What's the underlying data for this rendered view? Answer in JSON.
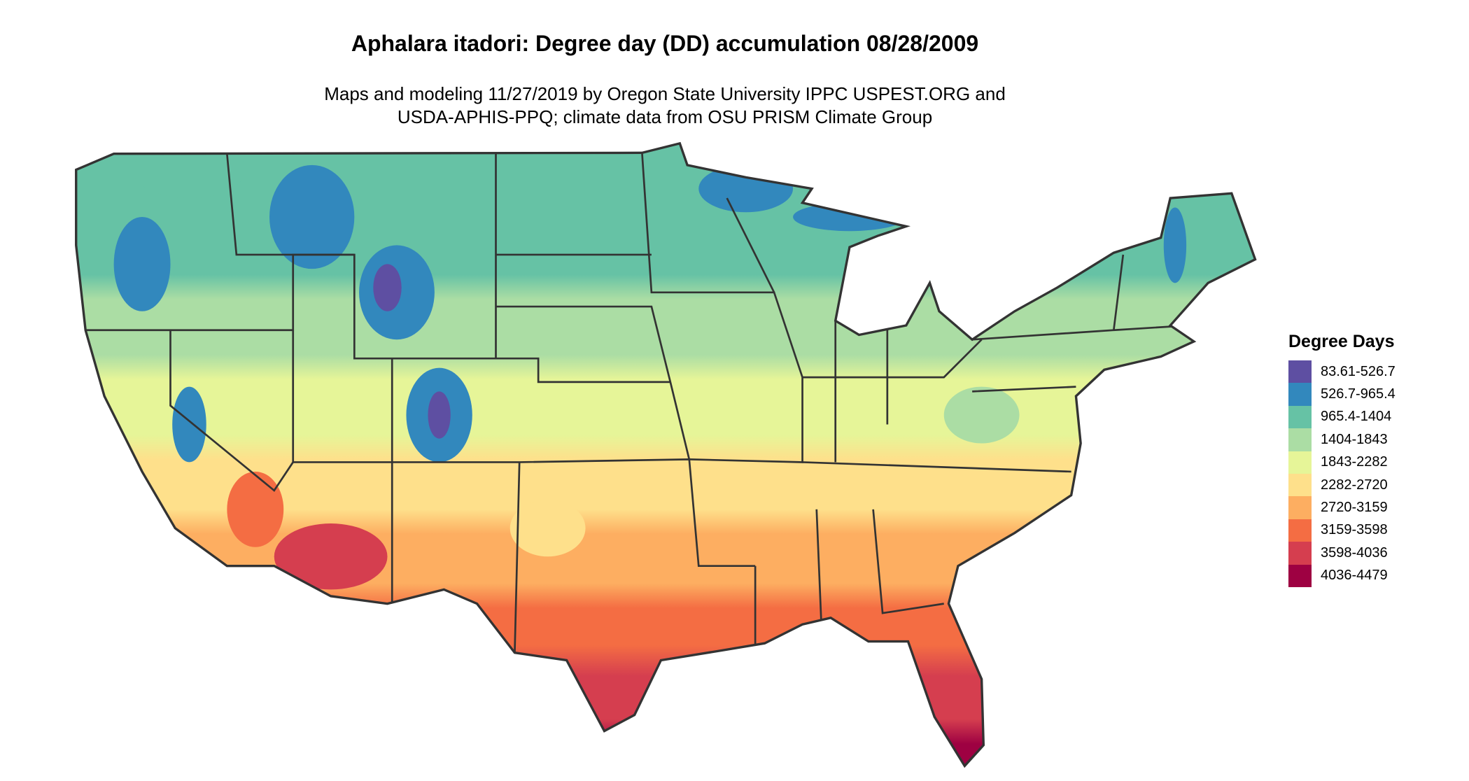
{
  "title": "Aphalara itadori: Degree day (DD) accumulation 08/28/2009",
  "subtitle_line1": "Maps and modeling 11/27/2019 by Oregon State University IPPC USPEST.ORG and",
  "subtitle_line2": "USDA-APHIS-PPQ; climate data from OSU PRISM Climate Group",
  "legend": {
    "title": "Degree Days",
    "bins": [
      {
        "label": "83.61-526.7",
        "color": "#5e4fa2"
      },
      {
        "label": "526.7-965.4",
        "color": "#3288bd"
      },
      {
        "label": "965.4-1404",
        "color": "#66c2a5"
      },
      {
        "label": "1404-1843",
        "color": "#abdda4"
      },
      {
        "label": "1843-2282",
        "color": "#e6f598"
      },
      {
        "label": "2282-2720",
        "color": "#fee08b"
      },
      {
        "label": "2720-3159",
        "color": "#fdae61"
      },
      {
        "label": "3159-3598",
        "color": "#f46d43"
      },
      {
        "label": "3598-4036",
        "color": "#d53e4f"
      },
      {
        "label": "4036-4479",
        "color": "#9e0142"
      }
    ]
  }
}
